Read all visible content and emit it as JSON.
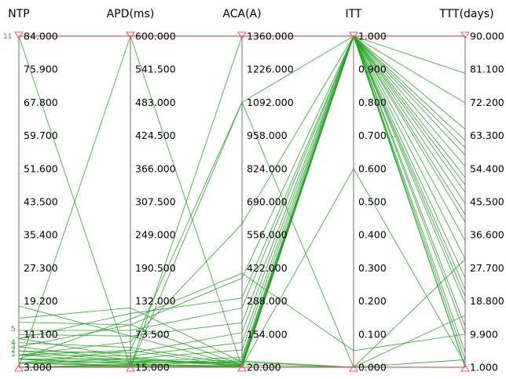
{
  "chart_data": {
    "type": "parallel-coordinates",
    "line_color": "#23a323",
    "highlight_color": "#e85a5a",
    "axes": [
      {
        "key": "NTP",
        "title": "NTP",
        "min": 3,
        "max": 84,
        "ticks": [
          "84.000",
          "75.900",
          "67.800",
          "59.700",
          "51.600",
          "43.500",
          "35.400",
          "27.300",
          "19.200",
          "11.100",
          "3.000"
        ]
      },
      {
        "key": "APD",
        "title": "APD(ms)",
        "min": 15,
        "max": 600,
        "ticks": [
          "600.000",
          "541.500",
          "483.000",
          "424.500",
          "366.000",
          "307.500",
          "249.000",
          "190.500",
          "132.000",
          "73.500",
          "15.000"
        ]
      },
      {
        "key": "ACA",
        "title": "ACA(A)",
        "min": 20,
        "max": 1360,
        "ticks": [
          "1360.000",
          "1226.000",
          "1092.000",
          "958.000",
          "824.000",
          "690.000",
          "556.000",
          "422.000",
          "288.000",
          "154.000",
          "20.000"
        ]
      },
      {
        "key": "ITT",
        "title": "ITT",
        "min": 0,
        "max": 1,
        "ticks": [
          "1.000",
          "0.900",
          "0.800",
          "0.700",
          "0.600",
          "0.500",
          "0.400",
          "0.300",
          "0.200",
          "0.100",
          "0.000"
        ]
      },
      {
        "key": "TTT",
        "title": "TTT(days)",
        "min": 1,
        "max": 90,
        "ticks": [
          "90.000",
          "81.100",
          "72.200",
          "63.300",
          "54.400",
          "45.500",
          "36.600",
          "27.700",
          "18.800",
          "9.900",
          "1.000"
        ]
      }
    ],
    "counts": [
      "11",
      "5",
      "4",
      "3",
      "2",
      "1"
    ],
    "records": [
      [
        84,
        600,
        1360,
        1,
        90
      ],
      [
        84,
        15,
        20,
        0,
        1
      ],
      [
        3,
        600,
        20,
        1,
        1
      ],
      [
        5,
        15,
        1092,
        1,
        72
      ],
      [
        3,
        15,
        20,
        1,
        1
      ],
      [
        3,
        15,
        1360,
        1,
        80
      ],
      [
        4,
        45,
        1092,
        0,
        1
      ],
      [
        6,
        60,
        600,
        1,
        1
      ],
      [
        5,
        100,
        400,
        0.05,
        9.9
      ],
      [
        8,
        90,
        380,
        1,
        5
      ],
      [
        10,
        110,
        300,
        1,
        12
      ],
      [
        12,
        80,
        260,
        1,
        25
      ],
      [
        11,
        70,
        200,
        1,
        30
      ],
      [
        7,
        40,
        160,
        1,
        40
      ],
      [
        6,
        35,
        120,
        1,
        45
      ],
      [
        5,
        30,
        90,
        1,
        50
      ],
      [
        4,
        25,
        60,
        1,
        55
      ],
      [
        9,
        50,
        30,
        1,
        60
      ],
      [
        3,
        20,
        25,
        1,
        65
      ],
      [
        15,
        120,
        40,
        0,
        30
      ],
      [
        18,
        70,
        25,
        1,
        20
      ],
      [
        14,
        90,
        30,
        1,
        10
      ],
      [
        6,
        45,
        20,
        1,
        3
      ],
      [
        4,
        30,
        30,
        0,
        3
      ],
      [
        3,
        18,
        45,
        0,
        15
      ],
      [
        5,
        22,
        50,
        1,
        35
      ],
      [
        8,
        28,
        35,
        1,
        42
      ],
      [
        10,
        33,
        22,
        1,
        48
      ],
      [
        7,
        26,
        28,
        1,
        52
      ],
      [
        4,
        19,
        24,
        1,
        58
      ],
      [
        6,
        24,
        40,
        1,
        62
      ],
      [
        3,
        16,
        26,
        1,
        18
      ],
      [
        4,
        17,
        22,
        0.6,
        2
      ],
      [
        5,
        21,
        20,
        1,
        22
      ],
      [
        3,
        15,
        20,
        0,
        1
      ]
    ]
  }
}
